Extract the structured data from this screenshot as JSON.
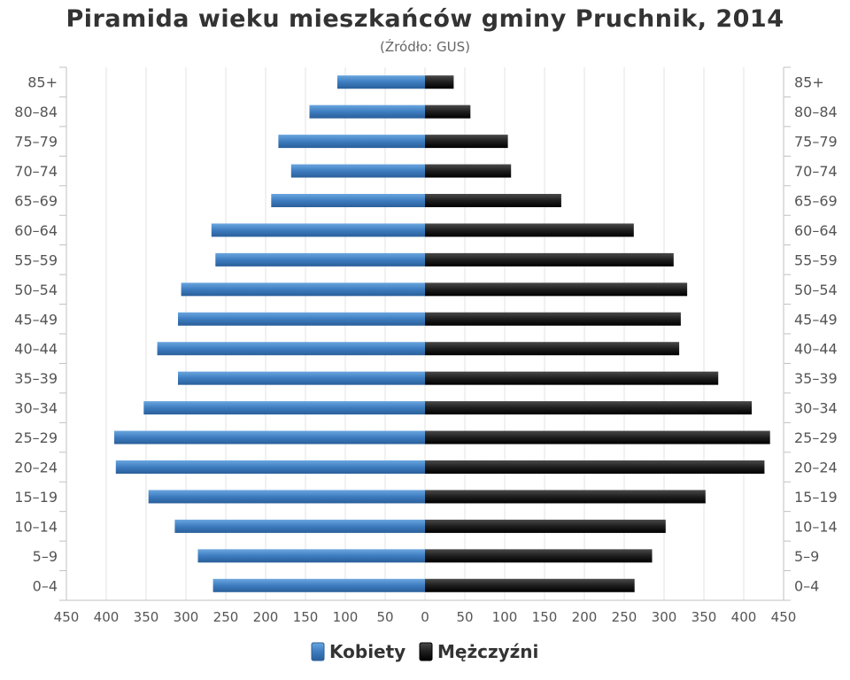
{
  "chart_data": {
    "type": "bar",
    "orientation": "horizontal",
    "title": "Piramida wieku mieszkańców gminy Pruchnik, 2014",
    "subtitle": "(Źródło: GUS)",
    "categories": [
      "0–4",
      "5–9",
      "10–14",
      "15–19",
      "20–24",
      "25–29",
      "30–34",
      "35–39",
      "40–44",
      "45–49",
      "50–54",
      "55–59",
      "60–64",
      "65–69",
      "70–74",
      "75–79",
      "80–84",
      "85+"
    ],
    "series": [
      {
        "name": "Kobiety",
        "color": "#3d7cc0",
        "values": [
          266,
          285,
          314,
          347,
          388,
          390,
          353,
          310,
          336,
          310,
          306,
          263,
          268,
          193,
          168,
          184,
          145,
          110
        ]
      },
      {
        "name": "Mężczyźni",
        "color": "#1a1a1a",
        "values": [
          263,
          285,
          302,
          352,
          426,
          433,
          410,
          368,
          319,
          321,
          329,
          312,
          262,
          171,
          108,
          104,
          57,
          36
        ]
      }
    ],
    "xlim": [
      -450,
      450
    ],
    "xticks": [
      "450",
      "400",
      "350",
      "300",
      "250",
      "200",
      "150",
      "100",
      "50",
      "0",
      "50",
      "100",
      "150",
      "200",
      "250",
      "300",
      "350",
      "400",
      "450"
    ],
    "grid": true,
    "legend_position": "bottom-center"
  }
}
